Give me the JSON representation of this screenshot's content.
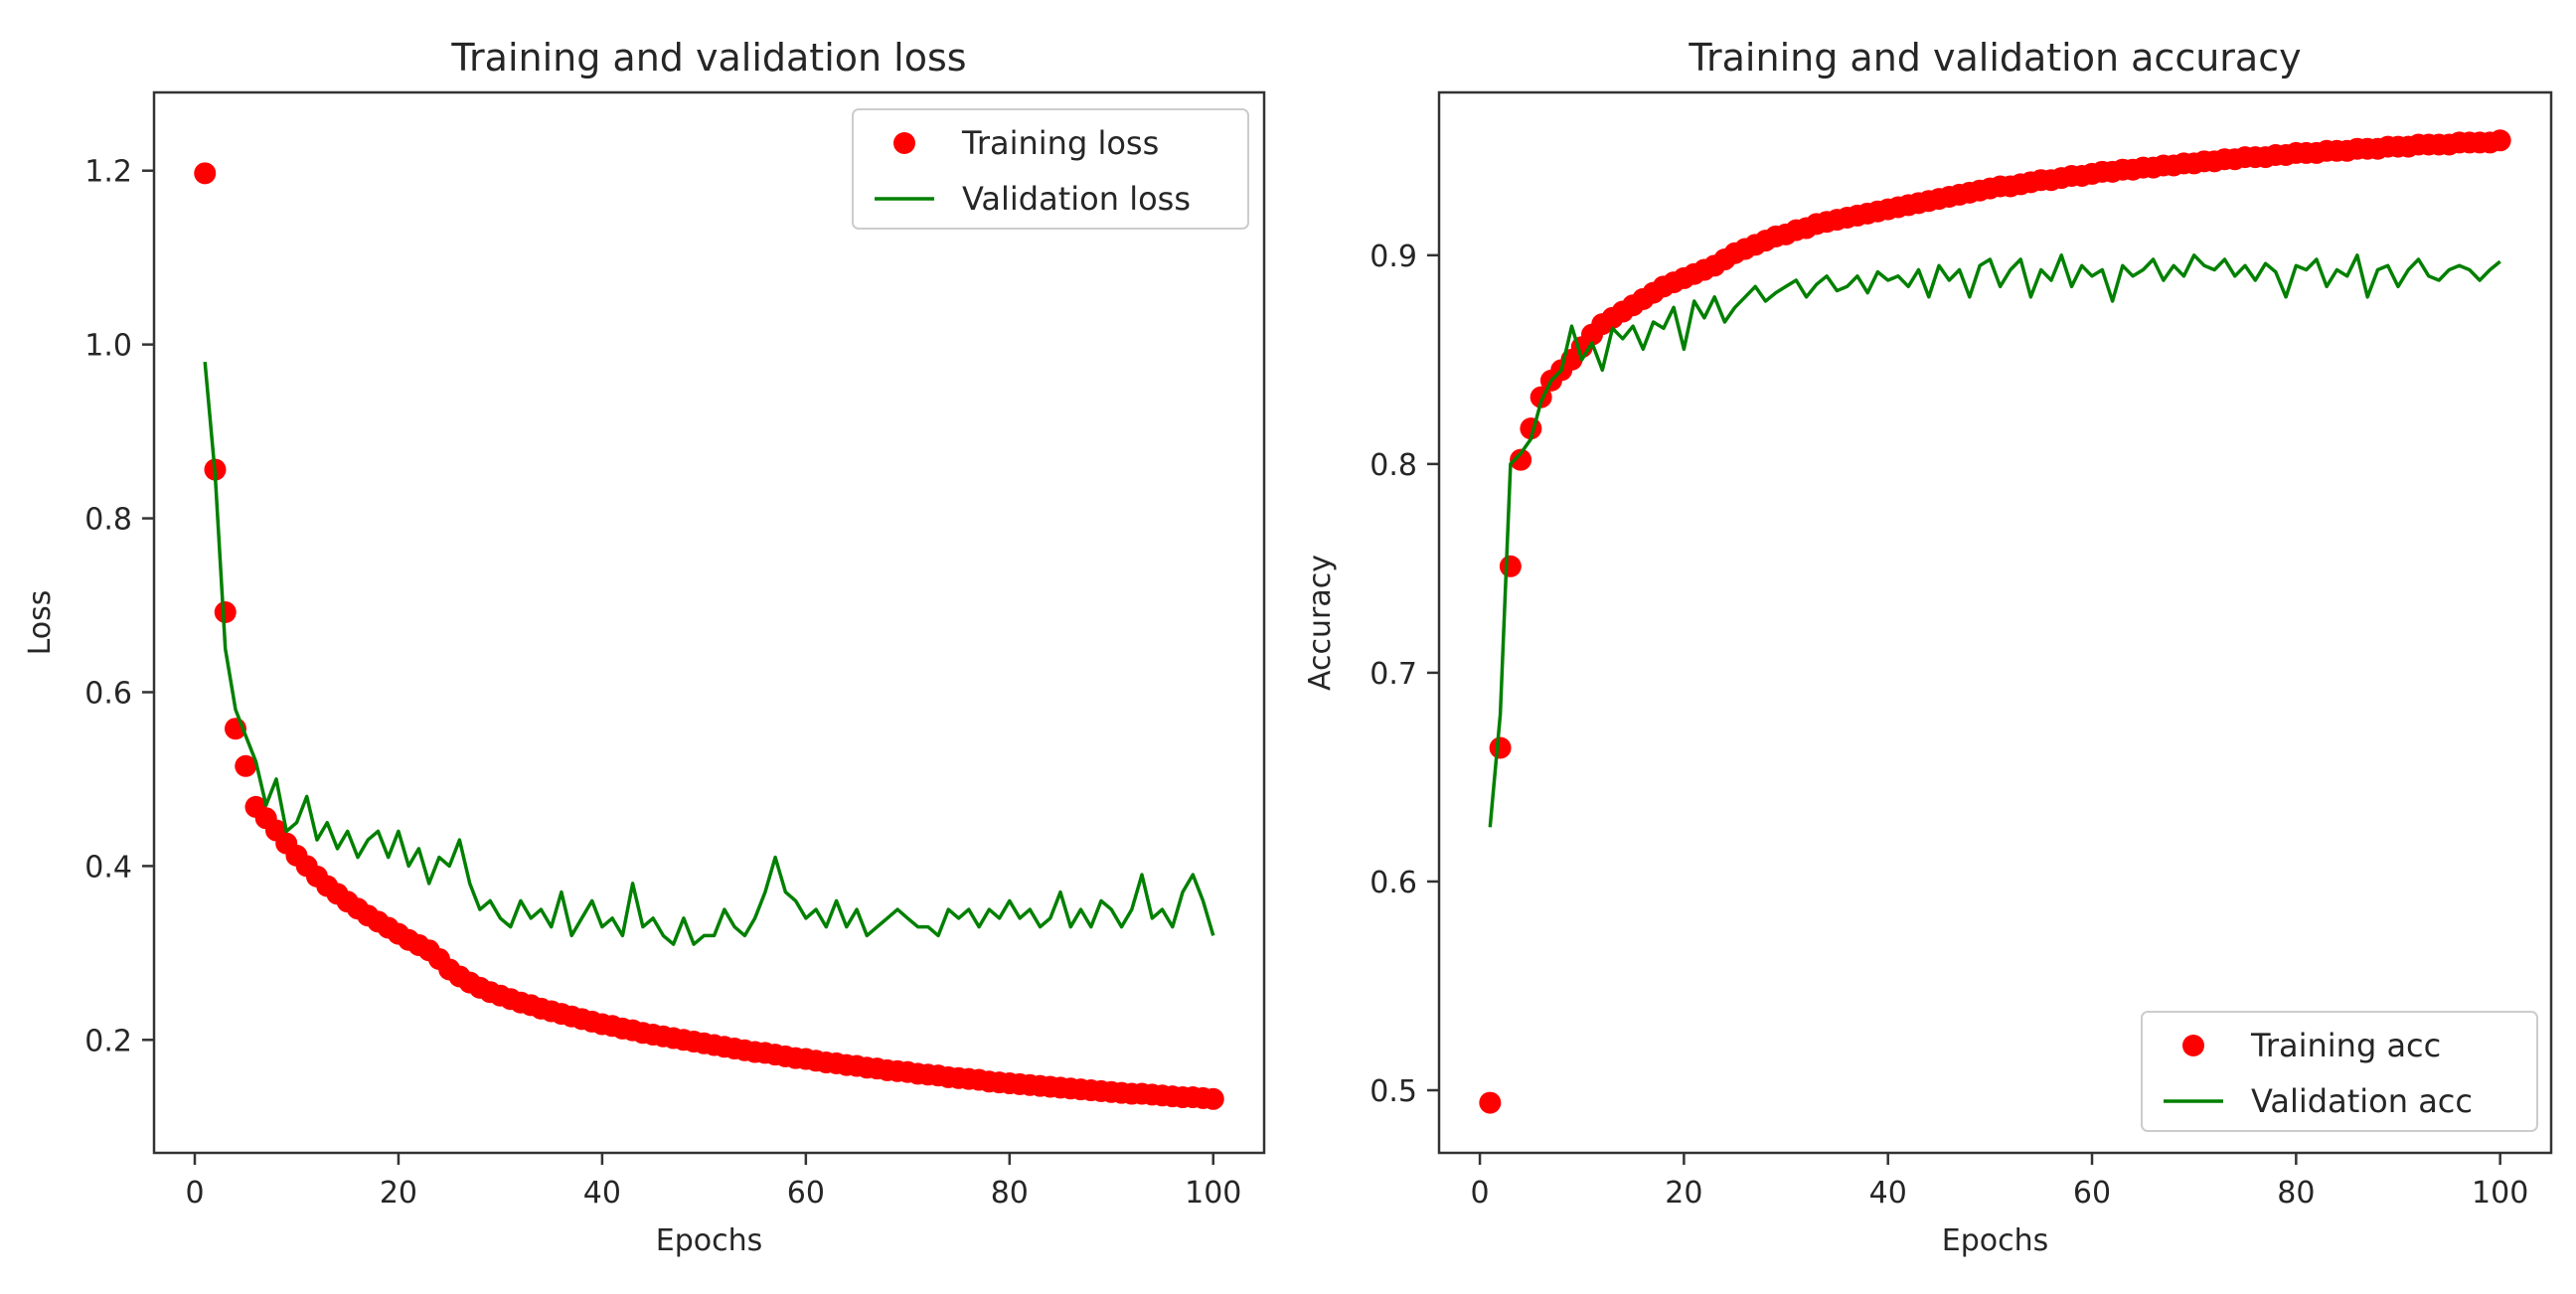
{
  "chart_data": [
    {
      "type": "line",
      "title": "Training and validation loss",
      "xlabel": "Epochs",
      "ylabel": "Loss",
      "xlim": [
        -4.0,
        105.0
      ],
      "ylim": [
        0.07,
        1.29
      ],
      "xticks": [
        0,
        20,
        40,
        60,
        80,
        100
      ],
      "xtick_labels": [
        "0",
        "20",
        "40",
        "60",
        "80",
        "100"
      ],
      "yticks": [
        0.2,
        0.4,
        0.6,
        0.8,
        1.0,
        1.2
      ],
      "ytick_labels": [
        "0.2",
        "0.4",
        "0.6",
        "0.8",
        "1.0",
        "1.2"
      ],
      "grid": false,
      "legend_position": "upper right",
      "series": [
        {
          "name": "Training loss",
          "style": "markers",
          "color": "#ff0000",
          "x": [
            1,
            2,
            3,
            4,
            5,
            6,
            7,
            8,
            9,
            10,
            11,
            12,
            13,
            14,
            15,
            16,
            17,
            18,
            19,
            20,
            21,
            22,
            23,
            24,
            25,
            26,
            27,
            28,
            29,
            30,
            31,
            32,
            33,
            34,
            35,
            36,
            37,
            38,
            39,
            40,
            41,
            42,
            43,
            44,
            45,
            46,
            47,
            48,
            49,
            50,
            51,
            52,
            53,
            54,
            55,
            56,
            57,
            58,
            59,
            60,
            61,
            62,
            63,
            64,
            65,
            66,
            67,
            68,
            69,
            70,
            71,
            72,
            73,
            74,
            75,
            76,
            77,
            78,
            79,
            80,
            81,
            82,
            83,
            84,
            85,
            86,
            87,
            88,
            89,
            90,
            91,
            92,
            93,
            94,
            95,
            96,
            97,
            98,
            99,
            100
          ],
          "values": [
            1.197,
            0.856,
            0.692,
            0.558,
            0.515,
            0.468,
            0.455,
            0.441,
            0.426,
            0.412,
            0.4,
            0.388,
            0.377,
            0.368,
            0.359,
            0.351,
            0.343,
            0.336,
            0.329,
            0.322,
            0.315,
            0.309,
            0.303,
            0.293,
            0.281,
            0.273,
            0.266,
            0.26,
            0.255,
            0.251,
            0.247,
            0.243,
            0.24,
            0.236,
            0.233,
            0.23,
            0.227,
            0.224,
            0.221,
            0.218,
            0.216,
            0.213,
            0.211,
            0.208,
            0.206,
            0.204,
            0.202,
            0.2,
            0.198,
            0.196,
            0.194,
            0.192,
            0.19,
            0.188,
            0.186,
            0.185,
            0.183,
            0.181,
            0.179,
            0.178,
            0.176,
            0.174,
            0.173,
            0.171,
            0.17,
            0.168,
            0.167,
            0.165,
            0.164,
            0.163,
            0.161,
            0.16,
            0.159,
            0.157,
            0.156,
            0.155,
            0.154,
            0.152,
            0.151,
            0.15,
            0.149,
            0.148,
            0.147,
            0.146,
            0.145,
            0.144,
            0.143,
            0.142,
            0.141,
            0.14,
            0.139,
            0.138,
            0.138,
            0.137,
            0.136,
            0.135,
            0.134,
            0.134,
            0.133,
            0.132
          ]
        },
        {
          "name": "Validation loss",
          "style": "line",
          "color": "#008000",
          "x": [
            1,
            2,
            3,
            4,
            5,
            6,
            7,
            8,
            9,
            10,
            11,
            12,
            13,
            14,
            15,
            16,
            17,
            18,
            19,
            20,
            21,
            22,
            23,
            24,
            25,
            26,
            27,
            28,
            29,
            30,
            31,
            32,
            33,
            34,
            35,
            36,
            37,
            38,
            39,
            40,
            41,
            42,
            43,
            44,
            45,
            46,
            47,
            48,
            49,
            50,
            51,
            52,
            53,
            54,
            55,
            56,
            57,
            58,
            59,
            60,
            61,
            62,
            63,
            64,
            65,
            66,
            67,
            68,
            69,
            70,
            71,
            72,
            73,
            74,
            75,
            76,
            77,
            78,
            79,
            80,
            81,
            82,
            83,
            84,
            85,
            86,
            87,
            88,
            89,
            90,
            91,
            92,
            93,
            94,
            95,
            96,
            97,
            98,
            99,
            100
          ],
          "values": [
            0.98,
            0.85,
            0.65,
            0.58,
            0.55,
            0.52,
            0.47,
            0.5,
            0.44,
            0.45,
            0.48,
            0.43,
            0.45,
            0.42,
            0.44,
            0.41,
            0.43,
            0.44,
            0.41,
            0.44,
            0.4,
            0.42,
            0.38,
            0.41,
            0.4,
            0.43,
            0.38,
            0.35,
            0.36,
            0.34,
            0.33,
            0.36,
            0.34,
            0.35,
            0.33,
            0.37,
            0.32,
            0.34,
            0.36,
            0.33,
            0.34,
            0.32,
            0.38,
            0.33,
            0.34,
            0.32,
            0.31,
            0.34,
            0.31,
            0.32,
            0.32,
            0.35,
            0.33,
            0.32,
            0.34,
            0.37,
            0.41,
            0.37,
            0.36,
            0.34,
            0.35,
            0.33,
            0.36,
            0.33,
            0.35,
            0.32,
            0.33,
            0.34,
            0.35,
            0.34,
            0.33,
            0.33,
            0.32,
            0.35,
            0.34,
            0.35,
            0.33,
            0.35,
            0.34,
            0.36,
            0.34,
            0.35,
            0.33,
            0.34,
            0.37,
            0.33,
            0.35,
            0.33,
            0.36,
            0.35,
            0.33,
            0.35,
            0.39,
            0.34,
            0.35,
            0.33,
            0.37,
            0.39,
            0.36,
            0.32
          ]
        }
      ]
    },
    {
      "type": "line",
      "title": "Training and validation accuracy",
      "xlabel": "Epochs",
      "ylabel": "Accuracy",
      "xlim": [
        -4.0,
        105.0
      ],
      "ylim": [
        0.47,
        0.978
      ],
      "xticks": [
        0,
        20,
        40,
        60,
        80,
        100
      ],
      "xtick_labels": [
        "0",
        "20",
        "40",
        "60",
        "80",
        "100"
      ],
      "yticks": [
        0.5,
        0.6,
        0.7,
        0.8,
        0.9
      ],
      "ytick_labels": [
        "0.5",
        "0.6",
        "0.7",
        "0.8",
        "0.9"
      ],
      "grid": false,
      "legend_position": "lower right",
      "series": [
        {
          "name": "Training acc",
          "style": "markers",
          "color": "#ff0000",
          "x": [
            1,
            2,
            3,
            4,
            5,
            6,
            7,
            8,
            9,
            10,
            11,
            12,
            13,
            14,
            15,
            16,
            17,
            18,
            19,
            20,
            21,
            22,
            23,
            24,
            25,
            26,
            27,
            28,
            29,
            30,
            31,
            32,
            33,
            34,
            35,
            36,
            37,
            38,
            39,
            40,
            41,
            42,
            43,
            44,
            45,
            46,
            47,
            48,
            49,
            50,
            51,
            52,
            53,
            54,
            55,
            56,
            57,
            58,
            59,
            60,
            61,
            62,
            63,
            64,
            65,
            66,
            67,
            68,
            69,
            70,
            71,
            72,
            73,
            74,
            75,
            76,
            77,
            78,
            79,
            80,
            81,
            82,
            83,
            84,
            85,
            86,
            87,
            88,
            89,
            90,
            91,
            92,
            93,
            94,
            95,
            96,
            97,
            98,
            99,
            100
          ],
          "values": [
            0.494,
            0.664,
            0.751,
            0.802,
            0.817,
            0.832,
            0.84,
            0.845,
            0.85,
            0.856,
            0.862,
            0.867,
            0.87,
            0.873,
            0.876,
            0.879,
            0.882,
            0.885,
            0.887,
            0.889,
            0.891,
            0.893,
            0.895,
            0.898,
            0.901,
            0.903,
            0.905,
            0.907,
            0.909,
            0.91,
            0.912,
            0.913,
            0.915,
            0.916,
            0.917,
            0.918,
            0.919,
            0.92,
            0.921,
            0.922,
            0.923,
            0.924,
            0.925,
            0.926,
            0.927,
            0.928,
            0.929,
            0.93,
            0.931,
            0.932,
            0.933,
            0.933,
            0.934,
            0.935,
            0.936,
            0.936,
            0.937,
            0.938,
            0.938,
            0.939,
            0.94,
            0.94,
            0.941,
            0.941,
            0.942,
            0.942,
            0.943,
            0.943,
            0.944,
            0.944,
            0.945,
            0.945,
            0.946,
            0.946,
            0.947,
            0.947,
            0.947,
            0.948,
            0.948,
            0.949,
            0.949,
            0.949,
            0.95,
            0.95,
            0.95,
            0.951,
            0.951,
            0.951,
            0.952,
            0.952,
            0.952,
            0.953,
            0.953,
            0.953,
            0.953,
            0.954,
            0.954,
            0.954,
            0.954,
            0.955
          ]
        },
        {
          "name": "Validation acc",
          "style": "line",
          "color": "#008000",
          "x": [
            1,
            2,
            3,
            4,
            5,
            6,
            7,
            8,
            9,
            10,
            11,
            12,
            13,
            14,
            15,
            16,
            17,
            18,
            19,
            20,
            21,
            22,
            23,
            24,
            25,
            26,
            27,
            28,
            29,
            30,
            31,
            32,
            33,
            34,
            35,
            36,
            37,
            38,
            39,
            40,
            41,
            42,
            43,
            44,
            45,
            46,
            47,
            48,
            49,
            50,
            51,
            52,
            53,
            54,
            55,
            56,
            57,
            58,
            59,
            60,
            61,
            62,
            63,
            64,
            65,
            66,
            67,
            68,
            69,
            70,
            71,
            72,
            73,
            74,
            75,
            76,
            77,
            78,
            79,
            80,
            81,
            82,
            83,
            84,
            85,
            86,
            87,
            88,
            89,
            90,
            91,
            92,
            93,
            94,
            95,
            96,
            97,
            98,
            99,
            100
          ],
          "values": [
            0.626,
            0.68,
            0.8,
            0.805,
            0.812,
            0.83,
            0.84,
            0.845,
            0.866,
            0.85,
            0.858,
            0.845,
            0.865,
            0.86,
            0.866,
            0.855,
            0.868,
            0.865,
            0.875,
            0.855,
            0.878,
            0.87,
            0.88,
            0.868,
            0.875,
            0.88,
            0.885,
            0.878,
            0.882,
            0.885,
            0.888,
            0.88,
            0.886,
            0.89,
            0.883,
            0.885,
            0.89,
            0.882,
            0.892,
            0.888,
            0.89,
            0.885,
            0.893,
            0.88,
            0.895,
            0.888,
            0.893,
            0.88,
            0.895,
            0.898,
            0.885,
            0.893,
            0.898,
            0.88,
            0.893,
            0.888,
            0.9,
            0.885,
            0.895,
            0.89,
            0.893,
            0.878,
            0.895,
            0.89,
            0.893,
            0.898,
            0.888,
            0.895,
            0.89,
            0.9,
            0.895,
            0.893,
            0.898,
            0.89,
            0.895,
            0.888,
            0.896,
            0.892,
            0.88,
            0.895,
            0.893,
            0.898,
            0.885,
            0.893,
            0.89,
            0.9,
            0.88,
            0.893,
            0.895,
            0.885,
            0.893,
            0.898,
            0.89,
            0.888,
            0.893,
            0.895,
            0.893,
            0.888,
            0.893,
            0.897
          ]
        }
      ]
    }
  ]
}
